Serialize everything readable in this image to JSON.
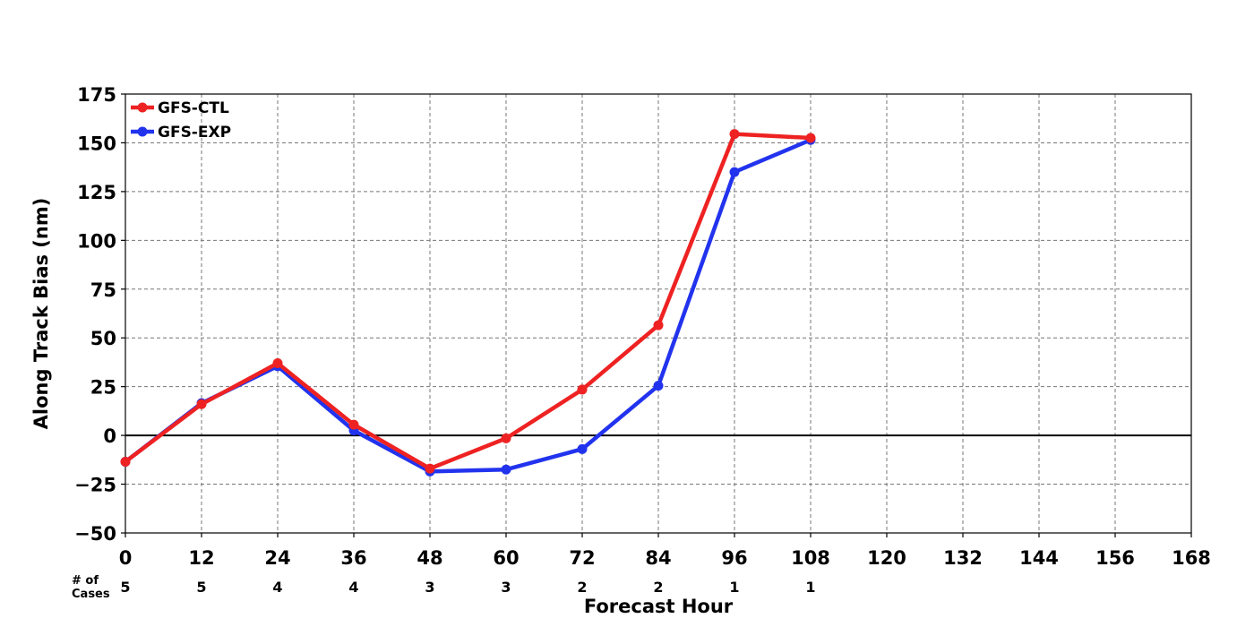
{
  "chart_data": {
    "type": "line",
    "title": "",
    "xlabel": "Forecast Hour",
    "ylabel": "Along Track Bias (nm)",
    "xlim": [
      0,
      168
    ],
    "ylim": [
      -50,
      175
    ],
    "x_ticks": [
      "0",
      "12",
      "24",
      "36",
      "48",
      "60",
      "72",
      "84",
      "96",
      "108",
      "120",
      "132",
      "144",
      "156",
      "168"
    ],
    "y_ticks": [
      "−50",
      "−25",
      "0",
      "25",
      "50",
      "75",
      "100",
      "125",
      "150",
      "175"
    ],
    "x_tick_values": [
      0,
      12,
      24,
      36,
      48,
      60,
      72,
      84,
      96,
      108,
      120,
      132,
      144,
      156,
      168
    ],
    "y_tick_values": [
      -50,
      -25,
      0,
      25,
      50,
      75,
      100,
      125,
      150,
      175
    ],
    "grid": true,
    "legend_position": "top-left",
    "x": [
      0,
      12,
      24,
      36,
      48,
      60,
      72,
      84,
      96,
      108
    ],
    "series": [
      {
        "name": "GFS-CTL",
        "color": "#ee2222",
        "values": [
          -13.5,
          16,
          37,
          5.5,
          -17,
          -1.5,
          23.5,
          56.5,
          154.5,
          152.5
        ]
      },
      {
        "name": "GFS-EXP",
        "color": "#2233ee",
        "values": [
          -13.5,
          16.5,
          35.5,
          2.5,
          -18.5,
          -17.5,
          -7,
          25.5,
          135,
          151.5
        ]
      }
    ],
    "cases": {
      "label_line1": "# of",
      "label_line2": "Cases",
      "values": [
        "5",
        "5",
        "4",
        "4",
        "3",
        "3",
        "2",
        "2",
        "1",
        "1"
      ]
    }
  }
}
